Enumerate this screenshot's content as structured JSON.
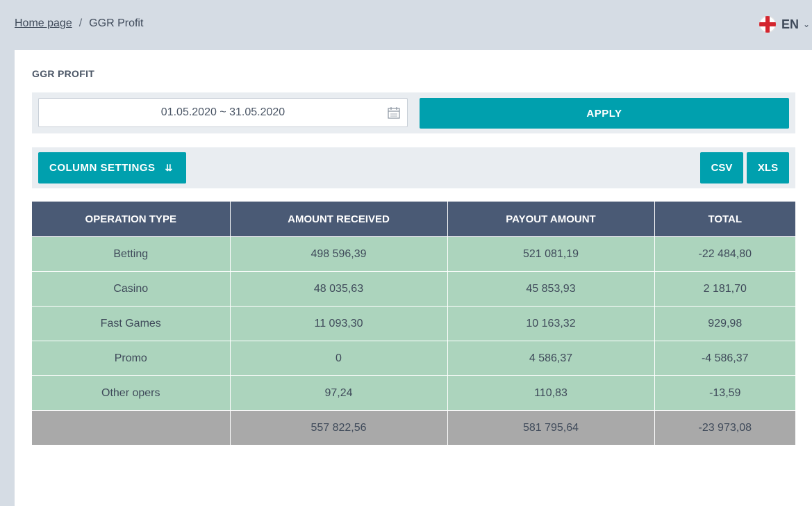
{
  "breadcrumb": {
    "home": "Home page",
    "separator": "/",
    "current": "GGR Profit"
  },
  "language": {
    "code": "EN",
    "flag_icon": "flag-icon"
  },
  "page": {
    "title": "GGR PROFIT"
  },
  "filter": {
    "date_range": "01.05.2020 ~ 31.05.2020",
    "apply_label": "APPLY"
  },
  "actions": {
    "column_settings_label": "COLUMN SETTINGS",
    "csv_label": "CSV",
    "xls_label": "XLS"
  },
  "table": {
    "headers": [
      "OPERATION TYPE",
      "AMOUNT RECEIVED",
      "PAYOUT AMOUNT",
      "TOTAL"
    ],
    "rows": [
      [
        "Betting",
        "498 596,39",
        "521 081,19",
        "-22 484,80"
      ],
      [
        "Casino",
        "48 035,63",
        "45 853,93",
        "2 181,70"
      ],
      [
        "Fast Games",
        "11 093,30",
        "10 163,32",
        "929,98"
      ],
      [
        "Promo",
        "0",
        "4 586,37",
        "-4 586,37"
      ],
      [
        "Other opers",
        "97,24",
        "110,83",
        "-13,59"
      ]
    ],
    "total_row": [
      "",
      "557 822,56",
      "581 795,64",
      "-23 973,08"
    ]
  },
  "colors": {
    "accent": "#00a0ae",
    "header_bg": "#4a5a75",
    "row_bg": "#acd4bd",
    "total_bg": "#a9a9a9"
  }
}
